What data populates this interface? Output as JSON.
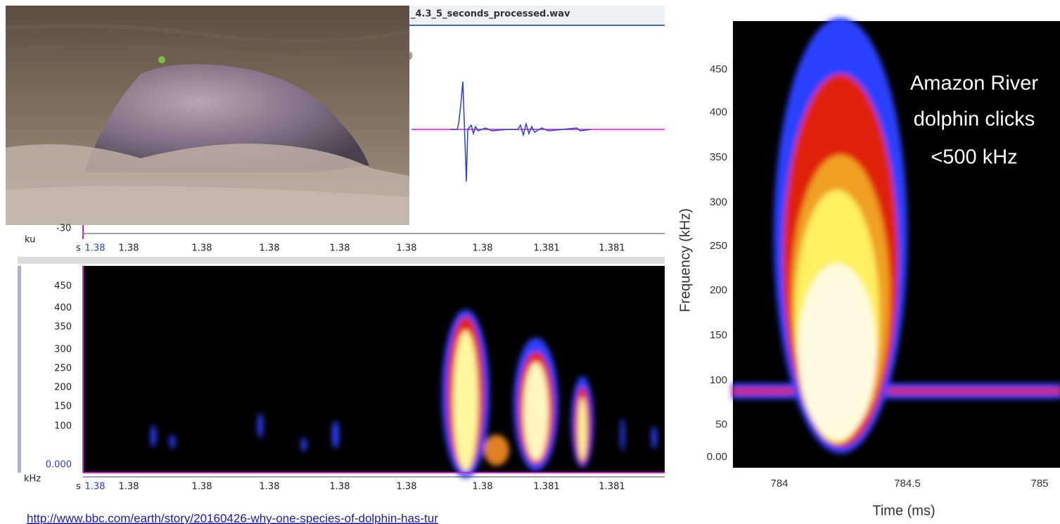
{
  "window": {
    "title": "_4.3_5_seconds_processed.wav"
  },
  "waveform": {
    "y_tick": "-30",
    "unit": "ku",
    "x_prefix": "s",
    "x_ticks": [
      "1.38",
      "1.38",
      "1.38",
      "1.38",
      "1.38",
      "1.38",
      "1.38",
      "1.381",
      "1.381"
    ]
  },
  "spectrogram": {
    "y_unit": "kHz",
    "y_ticks": [
      "450",
      "400",
      "350",
      "300",
      "250",
      "200",
      "150",
      "100",
      "0.000"
    ],
    "x_prefix": "s",
    "x_ticks": [
      "1.38",
      "1.38",
      "1.38",
      "1.38",
      "1.38",
      "1.38",
      "1.38",
      "1.381",
      "1.381"
    ]
  },
  "click_chart": {
    "annotation": [
      "Amazon River",
      "dolphin clicks",
      "<500 kHz"
    ],
    "y_label": "Frequency (kHz)",
    "y_ticks": [
      "450",
      "400",
      "350",
      "300",
      "250",
      "200",
      "150",
      "100",
      "50",
      "0.00"
    ],
    "x_label": "Time (ms)",
    "x_ticks": [
      "784",
      "784.5",
      "785"
    ]
  },
  "footer": {
    "link": "http://www.bbc.com/earth/story/20160426-why-one-species-of-dolphin-has-tur"
  }
}
